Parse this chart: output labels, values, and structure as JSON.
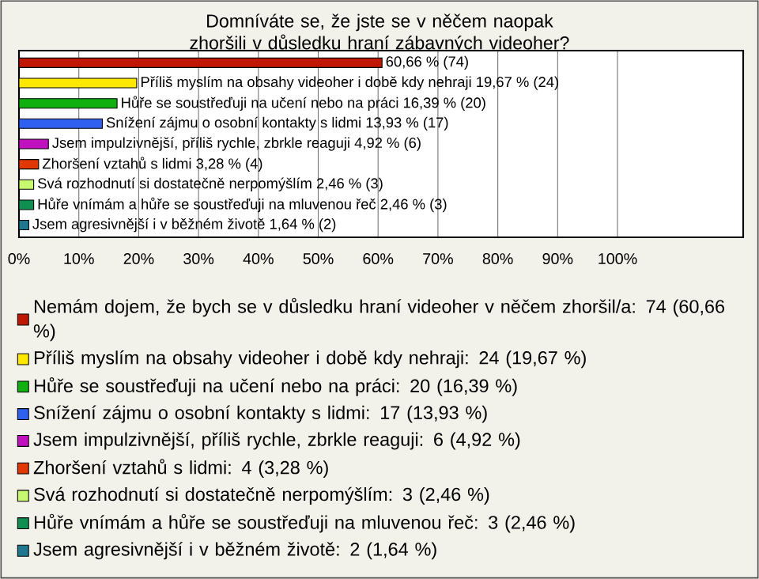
{
  "chart_data": {
    "type": "bar",
    "orientation": "horizontal",
    "title": "Domníváte se, že jste se v něčem naopak zhoršili v důsledku hraní zábavných videoher?",
    "categories": [
      null,
      null,
      null,
      null,
      null,
      null,
      null,
      null,
      null
    ],
    "series": [
      {
        "name": "Nemám dojem, že bych se v důsledku hraní videoher v něčem zhoršil/a: 74 (60,66 %)",
        "color": "#c01800",
        "values": [
          60.66,
          null,
          null,
          null,
          null,
          null,
          null,
          null,
          null
        ],
        "value_labels": [
          "60,66 % (74)",
          null,
          null,
          null,
          null,
          null,
          null,
          null,
          null
        ]
      },
      {
        "name": "Příliš myslím na obsahy videoher i době kdy nehraji: 24 (19,67 %)",
        "color": "#ffe800",
        "values": [
          null,
          19.67,
          null,
          null,
          null,
          null,
          null,
          null,
          null
        ],
        "value_labels": [
          null,
          "Příliš myslím na obsahy videoher i době kdy nehraji 19,67 % (24)",
          null,
          null,
          null,
          null,
          null,
          null,
          null
        ]
      },
      {
        "name": "Hůře se soustřeďuji na učení nebo na práci: 20 (16,39 %)",
        "color": "#10b010",
        "values": [
          null,
          null,
          16.39,
          null,
          null,
          null,
          null,
          null,
          null
        ],
        "value_labels": [
          null,
          null,
          "Hůře se soustřeďuji na učení nebo na práci 16,39 % (20)",
          null,
          null,
          null,
          null,
          null,
          null
        ]
      },
      {
        "name": "Snížení zájmu o osobní kontakty s lidmi: 17 (13,93 %)",
        "color": "#3060f0",
        "values": [
          null,
          null,
          null,
          13.93,
          null,
          null,
          null,
          null,
          null
        ],
        "value_labels": [
          null,
          null,
          null,
          "Snížení zájmu o osobní kontakty s lidmi 13,93 % (17)",
          null,
          null,
          null,
          null,
          null
        ]
      },
      {
        "name": "Jsem impulzivnější, příliš rychle, zbrkle reaguji: 6 (4,92 %)",
        "color": "#c010c0",
        "values": [
          null,
          null,
          null,
          null,
          4.92,
          null,
          null,
          null,
          null
        ],
        "value_labels": [
          null,
          null,
          null,
          null,
          "Jsem impulzivnější, příliš rychle, zbrkle reaguji 4,92 % (6)",
          null,
          null,
          null,
          null
        ]
      },
      {
        "name": "Zhoršení vztahů s lidmi: 4 (3,28 %)",
        "color": "#e03800",
        "values": [
          null,
          null,
          null,
          null,
          null,
          3.28,
          null,
          null,
          null
        ],
        "value_labels": [
          null,
          null,
          null,
          null,
          null,
          "Zhoršení vztahů s lidmi 3,28 % (4)",
          null,
          null,
          null
        ]
      },
      {
        "name": "Svá rozhodnutí si dostatečně nerpomýšlím: 3 (2,46 %)",
        "color": "#c8f870",
        "values": [
          null,
          null,
          null,
          null,
          null,
          null,
          2.46,
          null,
          null
        ],
        "value_labels": [
          null,
          null,
          null,
          null,
          null,
          null,
          "Svá rozhodnutí si dostatečně nerpomýšlím 2,46 % (3)",
          null,
          null
        ]
      },
      {
        "name": "Hůře vnímám a hůře se soustřeďuji na mluvenou řeč: 3 (2,46 %)",
        "color": "#109050",
        "values": [
          null,
          null,
          null,
          null,
          null,
          null,
          null,
          2.46,
          null
        ],
        "value_labels": [
          null,
          null,
          null,
          null,
          null,
          null,
          null,
          "Hůře vnímám a hůře se soustřeďuji na mluvenou řeč 2,46 % (3)",
          null
        ]
      },
      {
        "name": "Jsem agresivnější i v běžném životě: 2 (1,64 %)",
        "color": "#207890",
        "values": [
          null,
          null,
          null,
          null,
          null,
          null,
          null,
          null,
          1.64
        ],
        "value_labels": [
          null,
          null,
          null,
          null,
          null,
          null,
          null,
          null,
          "Jsem agresivnější i v běžném životě 1,64 % (2)"
        ]
      }
    ],
    "xlim": [
      0,
      121
    ],
    "xticks": [
      {
        "value": 0,
        "label": "0%"
      },
      {
        "value": 10,
        "label": "10%"
      },
      {
        "value": 20,
        "label": "20%"
      },
      {
        "value": 30,
        "label": "30%"
      },
      {
        "value": 40,
        "label": "40%"
      },
      {
        "value": 50,
        "label": "50%"
      },
      {
        "value": 60,
        "label": "60%"
      },
      {
        "value": 70,
        "label": "70%"
      },
      {
        "value": 80,
        "label": "80%"
      },
      {
        "value": 90,
        "label": "90%"
      },
      {
        "value": 100,
        "label": "100%"
      }
    ],
    "grid": "x",
    "legend": "bottom"
  }
}
